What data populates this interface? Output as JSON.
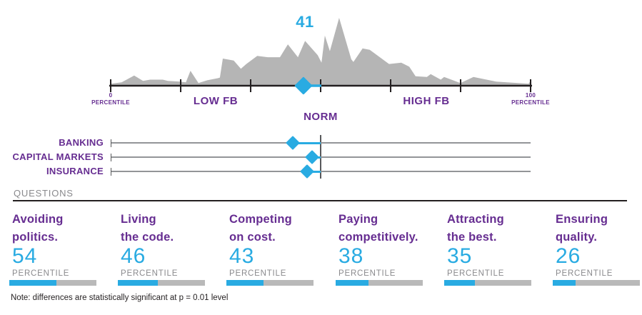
{
  "colors": {
    "blue": "#29ABE2",
    "purple": "#662D91",
    "dark": "#231F20",
    "gray_area": "#B5B5B5",
    "gray_line": "#939598",
    "gray_text": "#8A8A8D",
    "bar_track": "#B9B9B9"
  },
  "chart_data": [
    {
      "type": "area",
      "title": "Distribution of FB percentile scores with norm marker",
      "x_axis": {
        "range": [
          0,
          100
        ],
        "tick_pcts": [
          0,
          16.67,
          33.33,
          50,
          66.67,
          83.33,
          100
        ],
        "label_left": {
          "value": "0",
          "unit": "PERCENTILE"
        },
        "label_right": {
          "value": "100",
          "unit": "PERCENTILE"
        },
        "zone_labels": [
          {
            "text": "LOW FB",
            "pct": 25
          },
          {
            "text": "HIGH FB",
            "pct": 75
          }
        ],
        "norm_label": "NORM"
      },
      "norm_marker": {
        "value": 41,
        "pct": 45.9,
        "connector_to_pct": 50
      },
      "distribution_points": [
        [
          0,
          3
        ],
        [
          2.6,
          5
        ],
        [
          5.6,
          15
        ],
        [
          7.7,
          7
        ],
        [
          9.4,
          9
        ],
        [
          12.4,
          9
        ],
        [
          13.6,
          7
        ],
        [
          16.5,
          6
        ],
        [
          17.9,
          5
        ],
        [
          19,
          22
        ],
        [
          20.9,
          4
        ],
        [
          23,
          8
        ],
        [
          25.5,
          11
        ],
        [
          26,
          12
        ],
        [
          26.7,
          40
        ],
        [
          29.3,
          37
        ],
        [
          31,
          25
        ],
        [
          32.3,
          32
        ],
        [
          34.9,
          44
        ],
        [
          37.4,
          42
        ],
        [
          40.3,
          42
        ],
        [
          42.2,
          61
        ],
        [
          44.6,
          42
        ],
        [
          46.3,
          66
        ],
        [
          49.3,
          45
        ],
        [
          50.2,
          34
        ],
        [
          51,
          74
        ],
        [
          52.2,
          51
        ],
        [
          54.4,
          100
        ],
        [
          57.3,
          39
        ],
        [
          57.8,
          35
        ],
        [
          60,
          55
        ],
        [
          61.7,
          53
        ],
        [
          66.3,
          32
        ],
        [
          69.2,
          34
        ],
        [
          71.1,
          28
        ],
        [
          72.6,
          14
        ],
        [
          75.3,
          13
        ],
        [
          76.2,
          17
        ],
        [
          78.6,
          9
        ],
        [
          79.4,
          13
        ],
        [
          82.8,
          5
        ],
        [
          83.3,
          4
        ],
        [
          86.4,
          13
        ],
        [
          91.8,
          6
        ],
        [
          99.5,
          3
        ],
        [
          100,
          7
        ]
      ]
    },
    {
      "type": "scatter",
      "title": "Industry norm markers",
      "range": [
        0,
        100
      ],
      "reference_line_pct": 50,
      "rows": [
        {
          "label": "BANKING",
          "pct": 43.4
        },
        {
          "label": "CAPITAL MARKETS",
          "pct": 48
        },
        {
          "label": "INSURANCE",
          "pct": 46.8
        }
      ]
    },
    {
      "type": "bar",
      "title": "QUESTIONS",
      "categories": [
        "Avoiding politics.",
        "Living the code.",
        "Competing on cost.",
        "Paying competitively.",
        "Attracting the best.",
        "Ensuring quality."
      ],
      "category_lines": [
        [
          "Avoiding",
          "politics."
        ],
        [
          "Living",
          "the code."
        ],
        [
          "Competing",
          "on cost."
        ],
        [
          "Paying",
          "competitively."
        ],
        [
          "Attracting",
          "the best."
        ],
        [
          "Ensuring",
          "quality."
        ]
      ],
      "values": [
        54,
        46,
        43,
        38,
        35,
        26
      ],
      "unit": "PERCENTILE",
      "ylim": [
        0,
        100
      ]
    }
  ],
  "note": "Note: differences are statistically significant at p = 0.01 level"
}
